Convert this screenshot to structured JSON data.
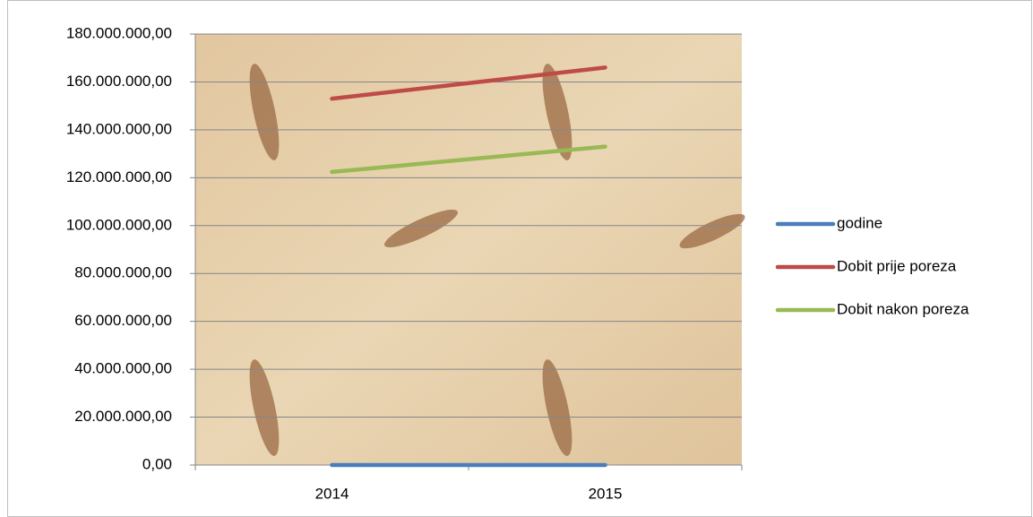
{
  "chart_data": {
    "type": "line",
    "categories": [
      "2014",
      "2015"
    ],
    "series": [
      {
        "name": "godine",
        "color": "#4a7ebb",
        "values": [
          2014,
          2015
        ]
      },
      {
        "name": "Dobit prije poreza",
        "color": "#be4b48",
        "values": [
          153000000,
          166000000
        ]
      },
      {
        "name": "Dobit nakon poreza",
        "color": "#98b954",
        "values": [
          122400000,
          133000000
        ]
      }
    ],
    "ylim": [
      0,
      180000000
    ],
    "yticks": [
      {
        "value": 0,
        "label": "0,00"
      },
      {
        "value": 20000000,
        "label": "20.000.000,00"
      },
      {
        "value": 40000000,
        "label": "40.000.000,00"
      },
      {
        "value": 60000000,
        "label": "60.000.000,00"
      },
      {
        "value": 80000000,
        "label": "80.000.000,00"
      },
      {
        "value": 100000000,
        "label": "100.000.000,00"
      },
      {
        "value": 120000000,
        "label": "120.000.000,00"
      },
      {
        "value": 140000000,
        "label": "140.000.000,00"
      },
      {
        "value": 160000000,
        "label": "160.000.000,00"
      },
      {
        "value": 180000000,
        "label": "180.000.000,00"
      }
    ],
    "grid": true,
    "legend": "right"
  }
}
